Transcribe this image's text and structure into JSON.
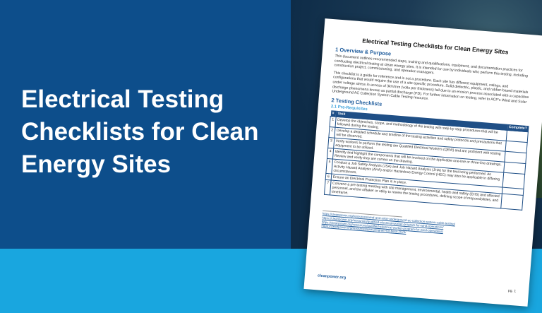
{
  "headline": "Electrical Testing Checklists for Clean Energy Sites",
  "colors": {
    "dark_blue": "#0d4e8b",
    "light_blue": "#19a6df"
  },
  "document": {
    "title": "Electrical Testing Checklists for Clean Energy Sites",
    "section1": "1   Overview & Purpose",
    "para1": "This document outlines recommended steps, training and qualifications, equipment, and documentation practices for conducting electrical testing at clean energy sites. It is intended for use by individuals who perform this testing, including construction project, commissioning, and operation managers.",
    "para2": "This checklist is a guide for reference and is not a procedure. Each site has different equipment, ratings, and configurations that would require the use of a site-specific procedure. Solid dielectric, plastic, and rubber-based materials under voltage stress in access of 3kV/mm (volts per thickness) fail due to an erosion process associated with a capacitive discharge phenomena known as partial discharge (PD). For further information on testing, refer to ACP's Wind and Solar Underground AC Collection System Cable Testing resource.",
    "section2": "2   Testing Checklists",
    "section21": "2.1   Pre-Requisites",
    "table_headers": [
      "#",
      "Task",
      "Complete?"
    ],
    "rows": [
      {
        "n": "1",
        "task": "Develop the objectives, scope, and methodology of the testing with step-by-step procedures that will be followed during the testing."
      },
      {
        "n": "2",
        "task": "Develop a detailed schedule and timeline of the testing activities and safety protocols and precautions that will be observed."
      },
      {
        "n": "3",
        "task": "Verify workers to perform the testing are Qualified Electrical Workers (QEW) and are proficient with testing equipment to be utilized."
      },
      {
        "n": "4",
        "task": "Identify and highlight the components that will be involved on the applicable one-line or three-line drawings. Review and verify they are correct on the drawing."
      },
      {
        "n": "5",
        "task": "Conduct a Job Safety Analysis (JSA) and Job Hazard Analysis (JHA) for the test being performed. An Activity Hazard Analysis (AHA) and/or Hazardous Energy Control (HEC) may also be applicable in differing circumstances."
      },
      {
        "n": "6",
        "task": "Ensure an Electrical Protection Plan is in place."
      },
      {
        "n": "7",
        "task": "Convene a pre-testing meeting with site management, environmental, health and safety (EHS) and affected personnel, and the offtaker or utility to review the testing procedures, defining scope of responsibilities, and timeframe."
      }
    ],
    "footnotes": [
      "https://cleanpower.org/resources/wind-and-solar-underground-ac-collection-system-cable-testing/",
      "https://cleanpower.org/resources/qualified-electrical-worker-program-for-wind-operations/",
      "https://cleanpower.org/resources/qualified-electrical-worker-program-for-wind-operations/",
      "https://cleanpower.org/resources/qew-program-for-bess-2023/"
    ],
    "footer": "cleanpower.org",
    "page": "pg. 1"
  }
}
